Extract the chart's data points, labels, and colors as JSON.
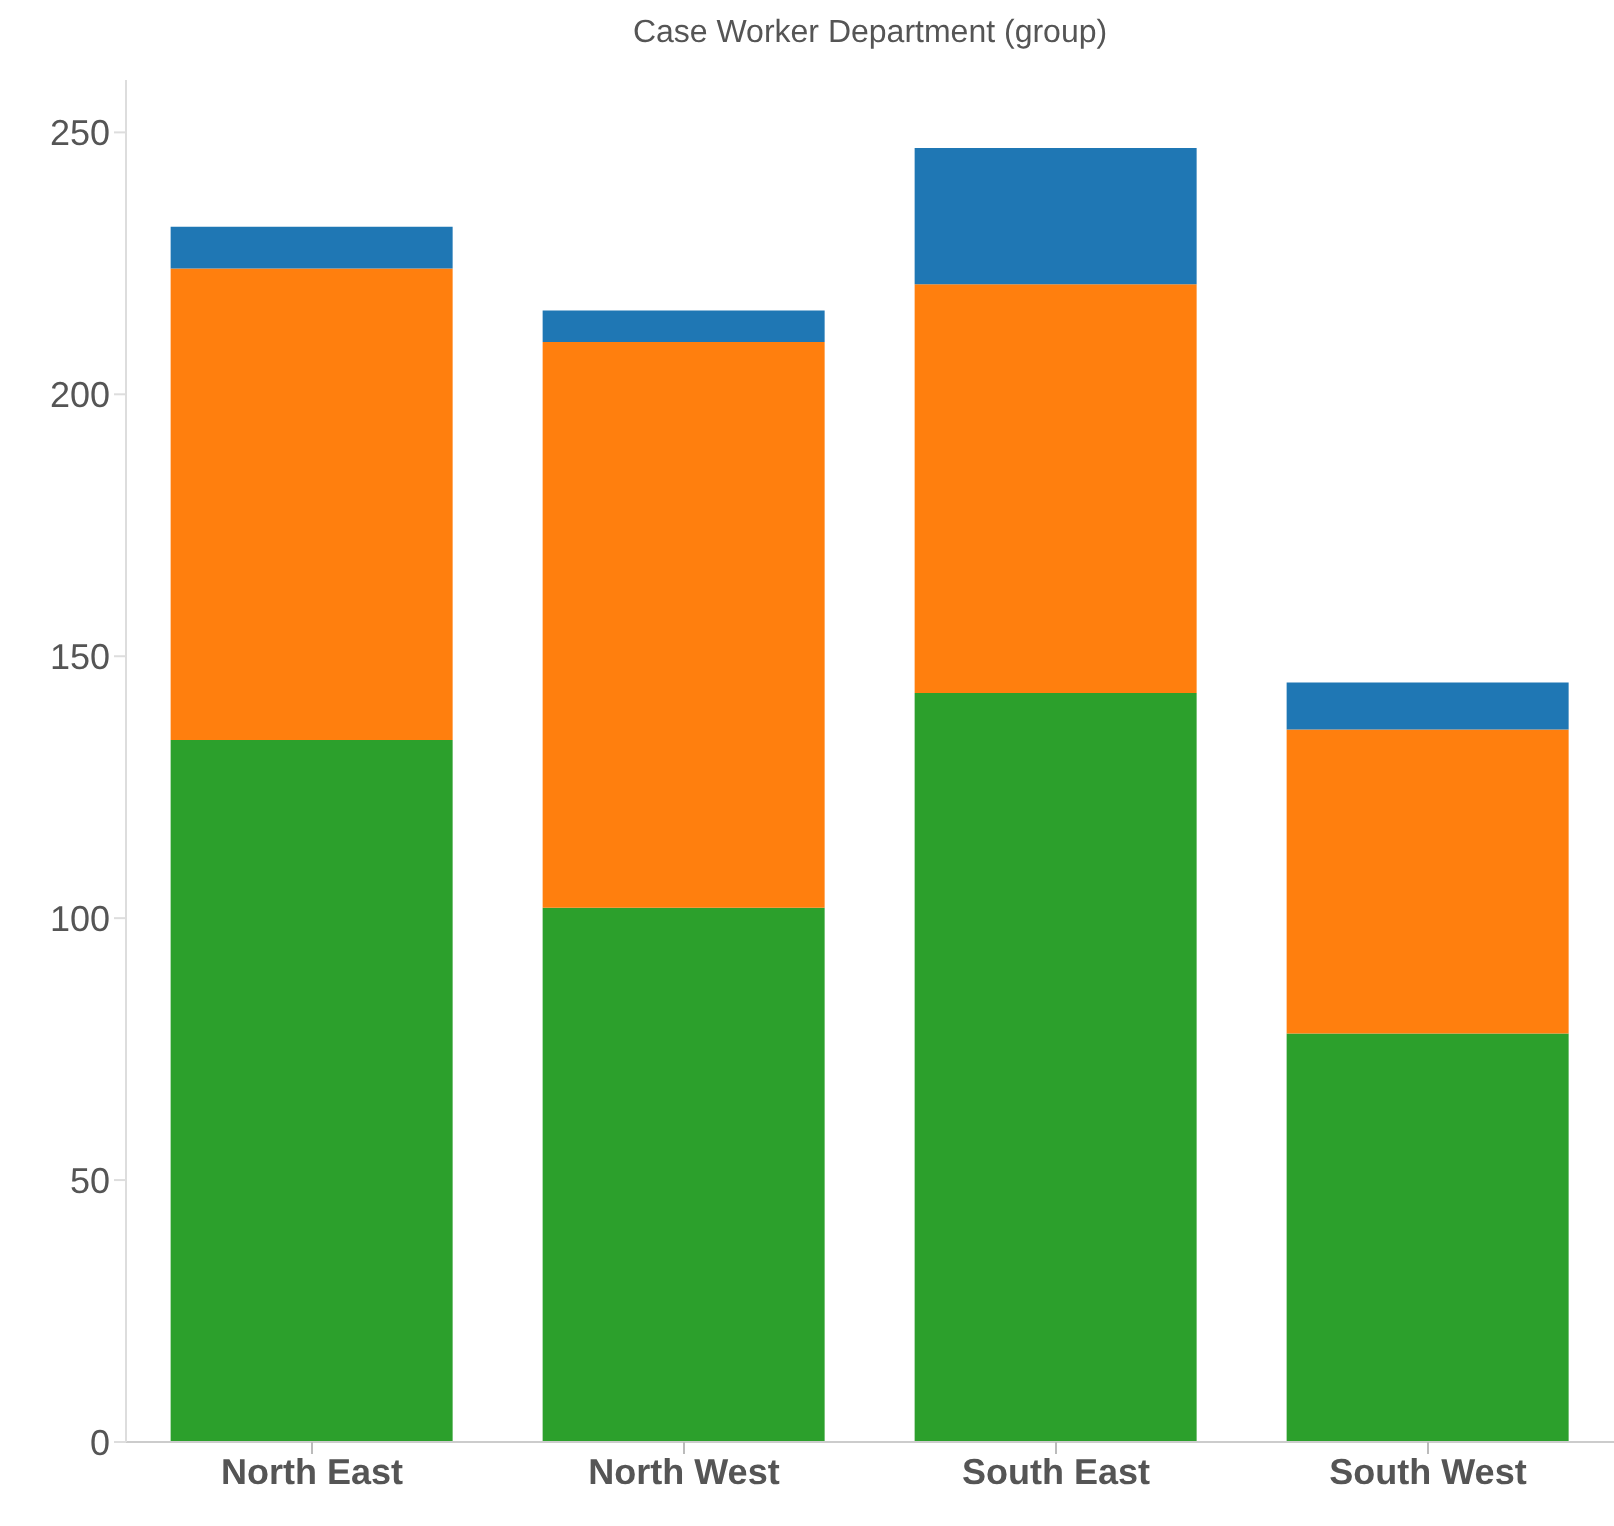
{
  "chart_data": {
    "type": "bar",
    "title": "Case Worker Department (group)",
    "categories": [
      "North East",
      "North West",
      "South East",
      "South West"
    ],
    "stacked": true,
    "series": [
      {
        "color": "#2ca02c",
        "values": [
          134,
          102,
          143,
          78
        ]
      },
      {
        "color": "#ff7f0e",
        "values": [
          90,
          108,
          78,
          58
        ]
      },
      {
        "color": "#1f77b4",
        "values": [
          8,
          6,
          26,
          9
        ]
      }
    ],
    "ylim": [
      0,
      260
    ],
    "yticks": [
      0,
      50,
      100,
      150,
      200,
      250
    ],
    "grid": false,
    "legend": false
  }
}
